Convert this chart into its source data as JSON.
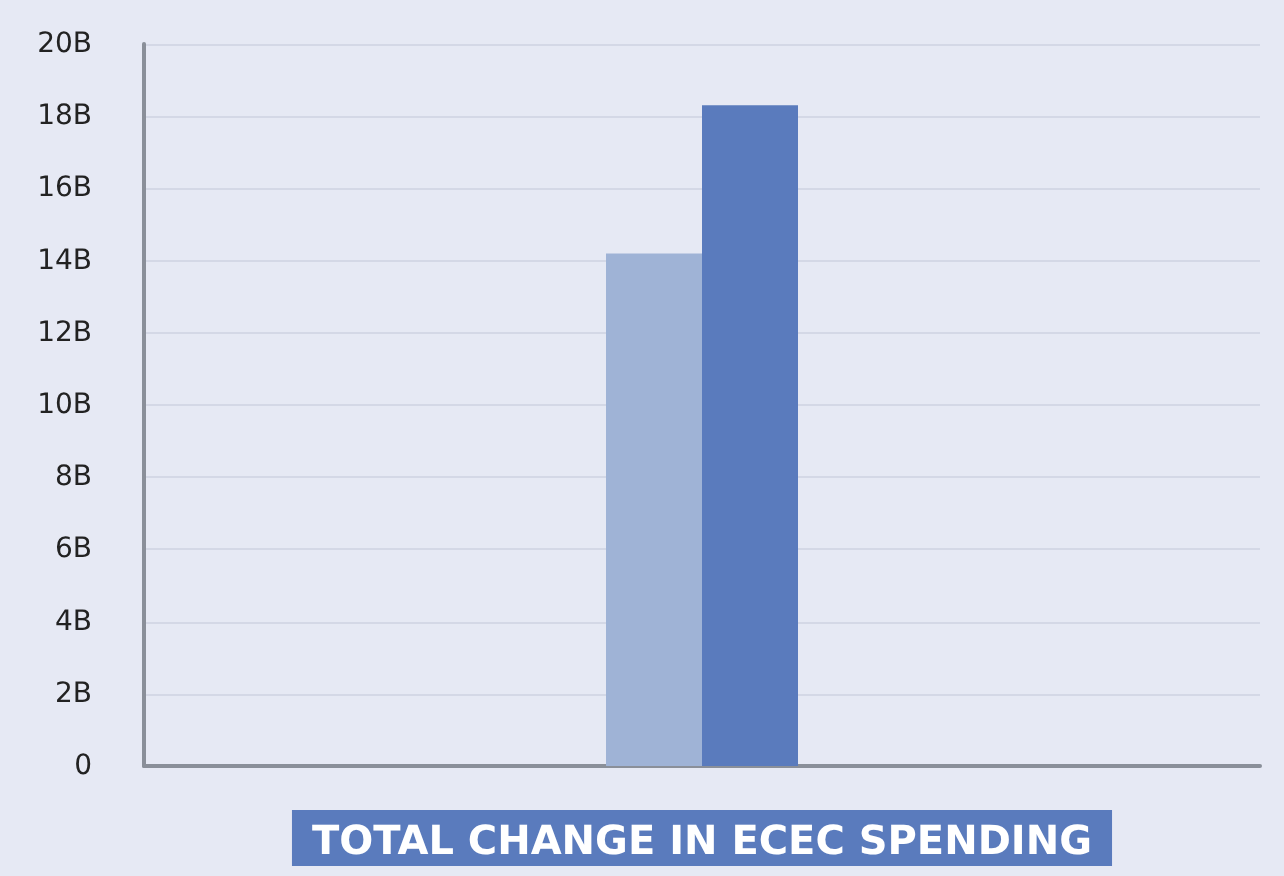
{
  "chart_data": {
    "type": "bar",
    "xlabel": "TOTAL CHANGE IN ECEC SPENDING",
    "categories": [
      null
    ],
    "series": [
      {
        "color": "#9fb3d6",
        "values": [
          14.2
        ]
      },
      {
        "color": "#5a7bbd",
        "values": [
          18.3
        ]
      }
    ],
    "ylim": [
      0,
      20
    ],
    "yticks": [
      {
        "value": 0,
        "label": "0"
      },
      {
        "value": 2,
        "label": "2B"
      },
      {
        "value": 4,
        "label": "4B"
      },
      {
        "value": 6,
        "label": "6B"
      },
      {
        "value": 8,
        "label": "8B"
      },
      {
        "value": 10,
        "label": "10B"
      },
      {
        "value": 12,
        "label": "12B"
      },
      {
        "value": 14,
        "label": "14B"
      },
      {
        "value": 16,
        "label": "16B"
      },
      {
        "value": 18,
        "label": "18B"
      },
      {
        "value": 20,
        "label": "20B"
      }
    ],
    "grid": "y"
  }
}
